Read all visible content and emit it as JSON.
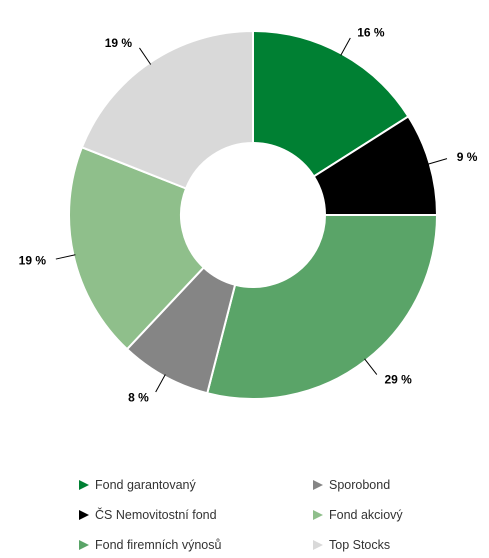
{
  "chart_data": {
    "type": "pie",
    "donut": true,
    "title": "",
    "slices": [
      {
        "label": "Fond garantovaný",
        "value": 16,
        "display": "16 %",
        "color": "#008033"
      },
      {
        "label": "ČS Nemovitostní fond",
        "value": 9,
        "display": "9 %",
        "color": "#000000"
      },
      {
        "label": "Fond firemních výnosů",
        "value": 29,
        "display": "29 %",
        "color": "#5aa468"
      },
      {
        "label": "Sporobond",
        "value": 8,
        "display": "8 %",
        "color": "#858585"
      },
      {
        "label": "Fond akciový",
        "value": 19,
        "display": "19 %",
        "color": "#8fbf8b"
      },
      {
        "label": "Top Stocks",
        "value": 19,
        "display": "19 %",
        "color": "#d9d9d9"
      }
    ],
    "legend_position": "bottom"
  },
  "legend": [
    {
      "label": "Fond garantovaný",
      "color": "#008033"
    },
    {
      "label": "Sporobond",
      "color": "#858585"
    },
    {
      "label": "ČS Nemovitostní fond",
      "color": "#000000"
    },
    {
      "label": "Fond akciový",
      "color": "#8fbf8b"
    },
    {
      "label": "Fond firemních výnosů",
      "color": "#5aa468"
    },
    {
      "label": "Top Stocks",
      "color": "#d9d9d9"
    }
  ]
}
